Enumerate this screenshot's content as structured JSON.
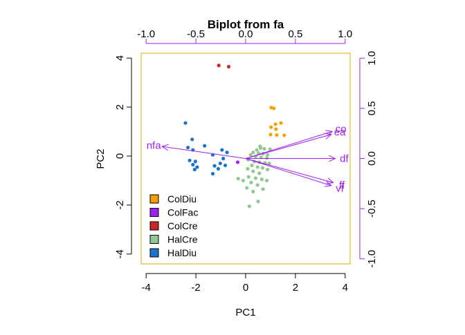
{
  "chart_data": {
    "type": "scatter",
    "subtype": "biplot",
    "title": "Biplot from fa",
    "xlabel": "PC1",
    "ylabel": "PC2",
    "xlim": [
      -4.2,
      4.2
    ],
    "ylim": [
      -4.4,
      4.2
    ],
    "x_ticks": [
      -4,
      -2,
      0,
      2,
      4
    ],
    "y_ticks": [
      -4,
      -2,
      0,
      2,
      4
    ],
    "loading_lim": [
      -1.05,
      1.05
    ],
    "loading_ticks_top": [
      -1.0,
      -0.5,
      0.0,
      0.5,
      1.0
    ],
    "loading_ticks_right": [
      -1.0,
      -0.5,
      0.0,
      0.5,
      1.0
    ],
    "legend_position": "bottom-left",
    "groups": [
      {
        "name": "ColDiu",
        "color": "#f5a000",
        "points": [
          [
            1.03,
            1.98
          ],
          [
            1.13,
            1.95
          ],
          [
            1.2,
            1.3
          ],
          [
            1.42,
            1.35
          ],
          [
            1.02,
            1.18
          ],
          [
            1.22,
            1.1
          ],
          [
            1.0,
            0.88
          ],
          [
            1.25,
            0.86
          ],
          [
            1.55,
            0.85
          ]
        ]
      },
      {
        "name": "ColFac",
        "color": "#a020f0",
        "points": [
          [
            -0.32,
            -0.25
          ]
        ]
      },
      {
        "name": "ColCre",
        "color": "#cd2626",
        "points": [
          [
            -1.08,
            3.7
          ],
          [
            -0.68,
            3.65
          ]
        ]
      },
      {
        "name": "HalCre",
        "color": "#90c890",
        "points": [
          [
            0.6,
            0.33
          ],
          [
            0.75,
            0.3
          ],
          [
            0.45,
            0.25
          ],
          [
            0.98,
            0.28
          ],
          [
            0.3,
            0.15
          ],
          [
            0.52,
            0.12
          ],
          [
            0.7,
            0.1
          ],
          [
            0.88,
            0.05
          ],
          [
            0.2,
            0.05
          ],
          [
            0.4,
            -0.02
          ],
          [
            0.62,
            -0.05
          ],
          [
            0.85,
            -0.08
          ],
          [
            0.1,
            -0.15
          ],
          [
            0.35,
            -0.22
          ],
          [
            0.55,
            -0.25
          ],
          [
            0.78,
            -0.28
          ],
          [
            0.95,
            -0.3
          ],
          [
            0.25,
            -0.38
          ],
          [
            0.48,
            -0.45
          ],
          [
            0.68,
            -0.48
          ],
          [
            0.08,
            -0.52
          ],
          [
            0.88,
            -0.55
          ],
          [
            0.3,
            -0.62
          ],
          [
            0.55,
            -0.7
          ],
          [
            -0.3,
            -0.92
          ],
          [
            0.12,
            -0.85
          ],
          [
            0.4,
            -0.9
          ],
          [
            0.65,
            -0.95
          ],
          [
            0.85,
            -1.0
          ],
          [
            0.22,
            -1.08
          ],
          [
            0.48,
            -1.18
          ],
          [
            0.05,
            -1.3
          ],
          [
            0.7,
            -1.35
          ],
          [
            0.3,
            -1.45
          ],
          [
            0.15,
            -2.05
          ],
          [
            0.5,
            -1.85
          ],
          [
            -0.1,
            -1.0
          ],
          [
            0.58,
            0.4
          ]
        ]
      },
      {
        "name": "HalDiu",
        "color": "#1874cd",
        "points": [
          [
            -2.42,
            1.35
          ],
          [
            -2.15,
            0.68
          ],
          [
            -1.65,
            0.42
          ],
          [
            -2.32,
            0.35
          ],
          [
            -2.12,
            0.25
          ],
          [
            -0.95,
            0.25
          ],
          [
            -0.75,
            0.15
          ],
          [
            -1.32,
            0.05
          ],
          [
            -0.9,
            -0.1
          ],
          [
            -2.25,
            -0.18
          ],
          [
            -2.02,
            -0.22
          ],
          [
            -1.02,
            -0.3
          ],
          [
            -2.12,
            -0.35
          ],
          [
            -0.82,
            -0.38
          ],
          [
            -1.25,
            -0.4
          ],
          [
            -1.95,
            -0.45
          ],
          [
            -1.1,
            -0.52
          ],
          [
            -2.05,
            -0.55
          ],
          [
            -1.32,
            -0.72
          ]
        ]
      }
    ],
    "loadings": [
      {
        "name": "co",
        "x": 0.87,
        "y": 0.27
      },
      {
        "name": "ea",
        "x": 0.86,
        "y": 0.24
      },
      {
        "name": "df",
        "x": 0.9,
        "y": 0.0
      },
      {
        "name": "ff",
        "x": 0.88,
        "y": -0.24
      },
      {
        "name": "vf",
        "x": 0.86,
        "y": -0.27
      },
      {
        "name": "nfa",
        "x": -0.84,
        "y": 0.12
      }
    ],
    "loading_color": "#a020f0"
  }
}
